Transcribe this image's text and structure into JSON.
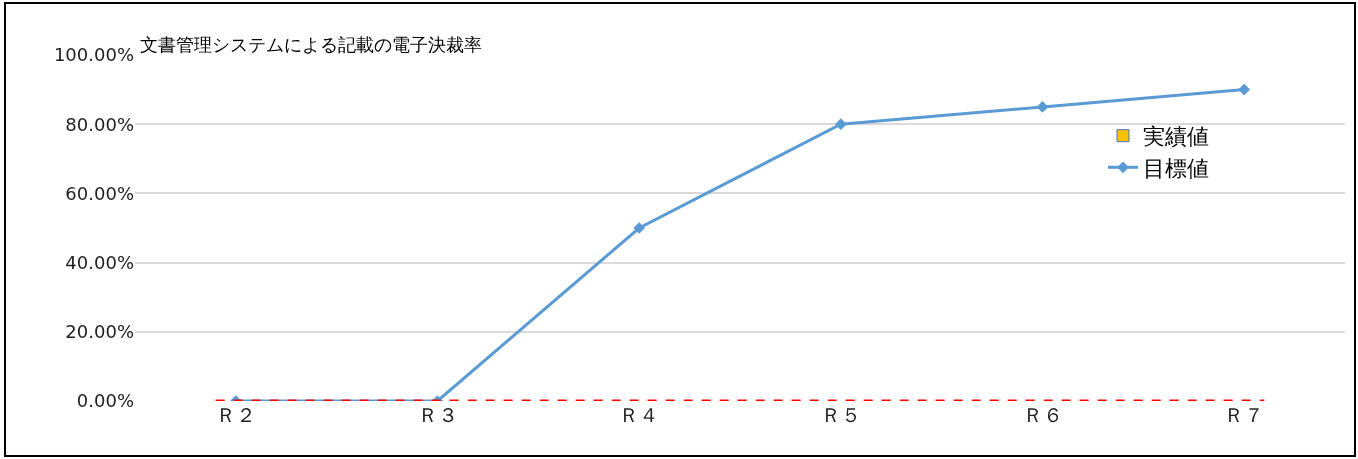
{
  "chart_data": {
    "type": "line",
    "title": "文書管理システムによる記載の電子決裁率",
    "categories": [
      "Ｒ２",
      "Ｒ３",
      "Ｒ４",
      "Ｒ５",
      "Ｒ６",
      "Ｒ７"
    ],
    "series": [
      {
        "name": "実績値",
        "type": "bar",
        "color": "#ffc000",
        "values": [
          null,
          null,
          null,
          null,
          null,
          null
        ]
      },
      {
        "name": "目標値",
        "color": "#5b9bd5",
        "marker": "diamond",
        "values": [
          0,
          0,
          50,
          80,
          85,
          90
        ]
      }
    ],
    "ylim": [
      0,
      100
    ],
    "yticks": [
      {
        "value": 0,
        "label": "0.00%"
      },
      {
        "value": 20,
        "label": "20.00%"
      },
      {
        "value": 40,
        "label": "40.00%"
      },
      {
        "value": 60,
        "label": "60.00%"
      },
      {
        "value": 80,
        "label": "80.00%"
      },
      {
        "value": 100,
        "label": "100.00%"
      }
    ],
    "ref_lines": [
      {
        "axis": "y",
        "value": 0,
        "label": null,
        "color": "#ff0000",
        "line_style": "dashed"
      }
    ],
    "grid": "y",
    "legend": "right"
  }
}
